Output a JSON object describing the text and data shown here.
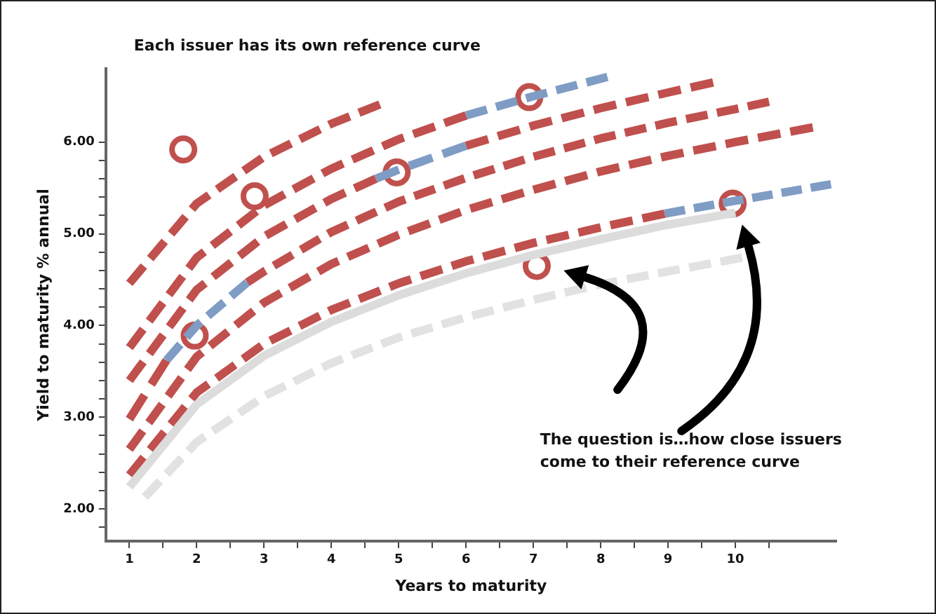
{
  "chart_data": {
    "type": "line",
    "xlabel": "Years to maturity",
    "ylabel": "Yield to maturity % annual",
    "annotations": [
      "Each issuer has its own reference curve",
      "The question is…how close issuers come to their reference curve"
    ],
    "xlim": [
      0.65,
      11.5
    ],
    "xticks": [
      1,
      {
        "value": 1.5,
        "label": null
      },
      2,
      {
        "value": 2.5,
        "label": null
      },
      3,
      {
        "value": 3.5,
        "label": null
      },
      4,
      {
        "value": 4.5,
        "label": null
      },
      5,
      {
        "value": 5.5,
        "label": null
      },
      6,
      {
        "value": 6.5,
        "label": null
      },
      7,
      {
        "value": 7.5,
        "label": null
      },
      8,
      {
        "value": 8.5,
        "label": null
      },
      9,
      {
        "value": 9.5,
        "label": null
      },
      10,
      {
        "value": 10.5,
        "label": null
      }
    ],
    "ylim": [
      1.65,
      6.8
    ],
    "yticks": [
      {
        "value": 1.8,
        "label": null
      },
      {
        "value": 2,
        "label": "2.00"
      },
      {
        "value": 2.2,
        "label": null
      },
      {
        "value": 2.4,
        "label": null
      },
      {
        "value": 2.6,
        "label": null
      },
      {
        "value": 2.8,
        "label": null
      },
      {
        "value": 3,
        "label": "3.00"
      },
      {
        "value": 3.2,
        "label": null
      },
      {
        "value": 3.4,
        "label": null
      },
      {
        "value": 3.6,
        "label": null
      },
      {
        "value": 3.8,
        "label": null
      },
      {
        "value": 4,
        "label": "4.00"
      },
      {
        "value": 4.2,
        "label": null
      },
      {
        "value": 4.4,
        "label": null
      },
      {
        "value": 4.6,
        "label": null
      },
      {
        "value": 4.8,
        "label": null
      },
      {
        "value": 5,
        "label": "5.00"
      },
      {
        "value": 5.2,
        "label": null
      },
      {
        "value": 5.4,
        "label": null
      },
      {
        "value": 5.6,
        "label": null
      },
      {
        "value": 5.8,
        "label": null
      },
      {
        "value": 6,
        "label": "6.00"
      }
    ],
    "grid": false,
    "legend": false,
    "marker": "none",
    "line_style": "dashed",
    "series": [
      {
        "color": "#dcdcdc",
        "line_style": "solid",
        "x": [
          1,
          2,
          3,
          4,
          5,
          6,
          7,
          8,
          9,
          10
        ],
        "values": [
          2.24,
          3.14,
          3.67,
          4.04,
          4.33,
          4.57,
          4.77,
          4.94,
          5.1,
          5.23
        ]
      },
      {
        "color": "#e2e2e2",
        "x": [
          1.23,
          2,
          3,
          4,
          5,
          6,
          7,
          8,
          9,
          10.1
        ],
        "values": [
          2.13,
          2.73,
          3.23,
          3.59,
          3.87,
          4.09,
          4.28,
          4.45,
          4.59,
          4.74
        ]
      },
      {
        "color": "#c0504d",
        "x": [
          1,
          2,
          3,
          4,
          4.72
        ],
        "values": [
          4.46,
          5.33,
          5.84,
          6.2,
          6.41
        ]
      },
      {
        "color": "#c0504d",
        "x": [
          1,
          2,
          3,
          4,
          5,
          6
        ],
        "values": [
          3.76,
          4.74,
          5.31,
          5.71,
          6.03,
          6.29
        ]
      },
      {
        "color": "#7f9cc4",
        "x": [
          6,
          7,
          8.1
        ],
        "values": [
          6.29,
          6.5,
          6.71
        ]
      },
      {
        "color": "#c0504d",
        "x": [
          1,
          2,
          3,
          4,
          4.66
        ],
        "values": [
          3.4,
          4.39,
          4.97,
          5.38,
          5.6
        ]
      },
      {
        "color": "#7f9cc4",
        "x": [
          4.66,
          5,
          6
        ],
        "values": [
          5.6,
          5.7,
          5.96
        ]
      },
      {
        "color": "#c0504d",
        "x": [
          6,
          7,
          8,
          9,
          9.67
        ],
        "values": [
          5.96,
          6.18,
          6.37,
          6.54,
          6.65
        ]
      },
      {
        "color": "#c0504d",
        "x": [
          1,
          1.55
        ],
        "values": [
          2.98,
          3.62
        ]
      },
      {
        "color": "#7f9cc4",
        "x": [
          1.55,
          2,
          2.75
        ],
        "values": [
          3.62,
          4.0,
          4.47
        ]
      },
      {
        "color": "#c0504d",
        "x": [
          2.75,
          3,
          4,
          5,
          6,
          7,
          8,
          9,
          10,
          10.5
        ],
        "values": [
          4.47,
          4.59,
          5.02,
          5.35,
          5.61,
          5.84,
          6.04,
          6.21,
          6.36,
          6.44
        ]
      },
      {
        "color": "#c0504d",
        "x": [
          1,
          2,
          3,
          4,
          5,
          6,
          7,
          8,
          9,
          10,
          11.15
        ],
        "values": [
          2.65,
          3.66,
          4.25,
          4.67,
          4.99,
          5.26,
          5.48,
          5.68,
          5.85,
          6.0,
          6.16
        ]
      },
      {
        "color": "#c0504d",
        "x": [
          1,
          2,
          3,
          4,
          5,
          6,
          7,
          8,
          8.95
        ],
        "values": [
          2.37,
          3.27,
          3.8,
          4.17,
          4.46,
          4.7,
          4.9,
          5.07,
          5.22
        ]
      },
      {
        "color": "#7f9cc4",
        "x": [
          8.95,
          10,
          11.42
        ],
        "values": [
          5.22,
          5.36,
          5.54
        ]
      },
      {
        "type": "scatter",
        "marker": "circle",
        "color": "#c0504d",
        "x": [
          1.8,
          2.86,
          4.97,
          6.94,
          1.97,
          7.05,
          9.96
        ],
        "values": [
          5.92,
          5.41,
          5.67,
          6.49,
          3.89,
          4.65,
          5.33
        ]
      }
    ]
  }
}
